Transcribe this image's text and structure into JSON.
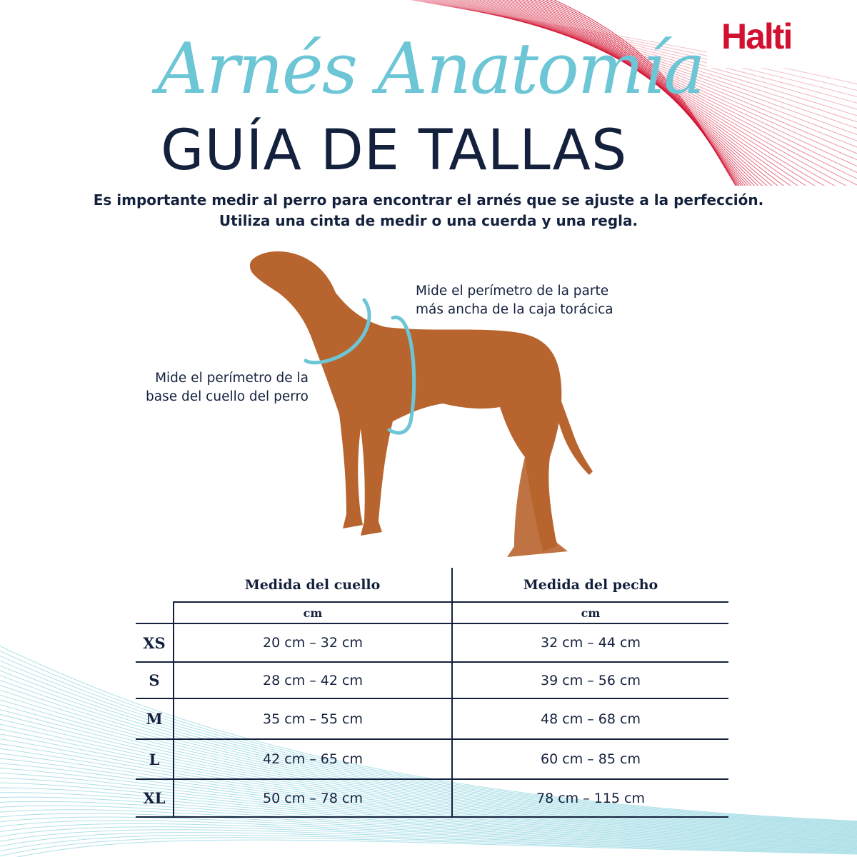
{
  "brand": {
    "logo": "Halti",
    "accent_red": "#d2102f",
    "accent_teal": "#6cc6d6",
    "navy": "#14213d"
  },
  "header": {
    "script_title": "Arnés Anatomía",
    "title": "GUÍA DE TALLAS"
  },
  "intro": {
    "line1": "Es importante medir al perro para encontrar el arnés que se ajuste a la perfección.",
    "line2": "Utiliza una cinta de medir o una cuerda y una regla."
  },
  "diagram": {
    "chest_note": [
      "Mide el perímetro de la parte",
      "más ancha de la caja torácica"
    ],
    "neck_note": [
      "Mide el perímetro de la",
      "base del cuello del perro"
    ]
  },
  "table": {
    "columns": [
      "Medida del cuello",
      "Medida del pecho"
    ],
    "units": [
      "cm",
      "cm"
    ],
    "rows": [
      {
        "size": "XS",
        "neck": "20 cm – 32 cm",
        "chest": "32 cm – 44 cm"
      },
      {
        "size": "S",
        "neck": "28 cm – 42 cm",
        "chest": "39 cm – 56 cm"
      },
      {
        "size": "M",
        "neck": "35 cm – 55 cm",
        "chest": "48 cm – 68 cm"
      },
      {
        "size": "L",
        "neck": "42 cm – 65 cm",
        "chest": "60 cm – 85 cm"
      },
      {
        "size": "XL",
        "neck": "50 cm – 78 cm",
        "chest": "78 cm – 115 cm"
      }
    ]
  }
}
